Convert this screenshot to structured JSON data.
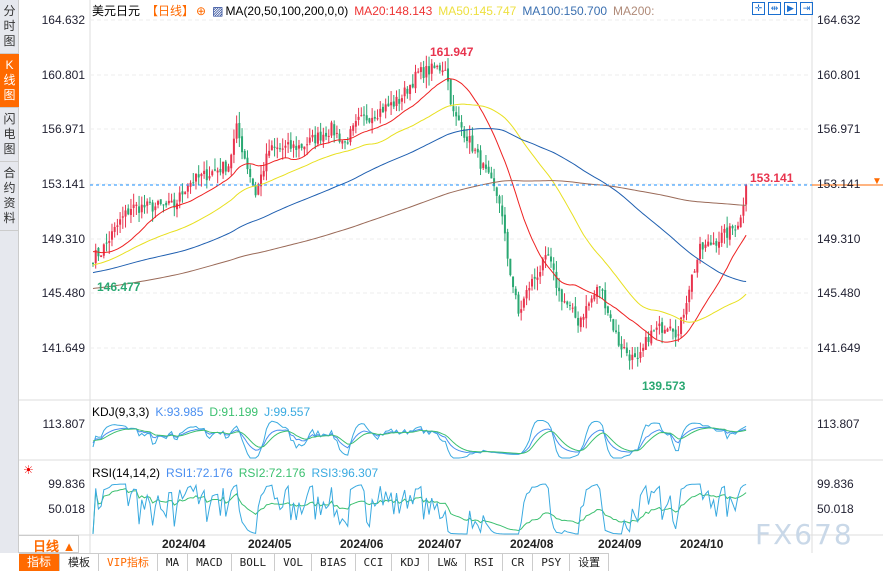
{
  "sidebar": {
    "items": [
      "分时图",
      "K线图",
      "闪电图",
      "合约资料"
    ],
    "active": 1
  },
  "header": {
    "symbol": "美元日元",
    "period": "【日线】",
    "ma_label": "MA(20,50,100,200,0,0)",
    "ma20": "MA20:148.143",
    "ma50": "MA50:145.747",
    "ma100": "MA100:150.700",
    "ma200": "MA200:"
  },
  "tools": [
    "crosshair-tool",
    "zoom-range-tool",
    "play-tool",
    "end-tool"
  ],
  "price_axis": [
    "164.632",
    "160.801",
    "156.971",
    "153.141",
    "149.310",
    "145.480",
    "141.649"
  ],
  "last_price": "153.141",
  "annotations": {
    "high": "161.947",
    "low": "139.573",
    "start_low": "146.477",
    "last": "153.141"
  },
  "kdj": {
    "label": "KDJ(9,3,3)",
    "k": "K:93.985",
    "d": "D:91.199",
    "j": "J:99.557",
    "axis": "113.807"
  },
  "rsi": {
    "label": "RSI(14,14,2)",
    "rsi1": "RSI1:72.176",
    "rsi2": "RSI2:72.176",
    "rsi3": "RSI3:96.307",
    "axis": [
      "99.836",
      "50.018"
    ]
  },
  "dates": [
    "2024/04",
    "2024/05",
    "2024/06",
    "2024/07",
    "2024/08",
    "2024/09",
    "2024/10"
  ],
  "period_button": "日线 ▲",
  "tabs": [
    "指标",
    "模板",
    "VIP指标",
    "MA",
    "MACD",
    "BOLL",
    "VOL",
    "BIAS",
    "CCI",
    "KDJ",
    "LW&",
    "RSI",
    "CR",
    "PSY",
    "设置"
  ],
  "watermark": "FX678",
  "colors": {
    "up": "#e8344e",
    "down": "#2aa872",
    "ma20": "#ee2222",
    "ma50": "#e8e020",
    "ma100": "#1f5fb0",
    "ma200": "#9a6a58",
    "accent": "#ff6a00"
  },
  "chart_data": {
    "type": "candlestick",
    "title": "美元日元 日线",
    "ylim": [
      139.0,
      165.5
    ],
    "anchors": [
      [
        0,
        148.0
      ],
      [
        3,
        148.4
      ],
      [
        10,
        150.5
      ],
      [
        14,
        151.5
      ],
      [
        30,
        151.6
      ],
      [
        35,
        153.2
      ],
      [
        50,
        154.5
      ],
      [
        53,
        157
      ],
      [
        56,
        155
      ],
      [
        60,
        152.5
      ],
      [
        65,
        155.5
      ],
      [
        77,
        155.8
      ],
      [
        88,
        157
      ],
      [
        93,
        156
      ],
      [
        98,
        157.5
      ],
      [
        113,
        159
      ],
      [
        120,
        160.9
      ],
      [
        130,
        161.4
      ],
      [
        133,
        158
      ],
      [
        138,
        156.5
      ],
      [
        146,
        153.5
      ],
      [
        150,
        152
      ],
      [
        153,
        148
      ],
      [
        157,
        144
      ],
      [
        161,
        146
      ],
      [
        168,
        148
      ],
      [
        172,
        145.5
      ],
      [
        179,
        143.5
      ],
      [
        187,
        146
      ],
      [
        194,
        142
      ],
      [
        201,
        140.5
      ],
      [
        205,
        142.5
      ],
      [
        213,
        143.5
      ],
      [
        216,
        142.5
      ],
      [
        220,
        146
      ],
      [
        224,
        148.5
      ],
      [
        235,
        149.8
      ],
      [
        239,
        150.7
      ],
      [
        241,
        153.1
      ]
    ]
  }
}
